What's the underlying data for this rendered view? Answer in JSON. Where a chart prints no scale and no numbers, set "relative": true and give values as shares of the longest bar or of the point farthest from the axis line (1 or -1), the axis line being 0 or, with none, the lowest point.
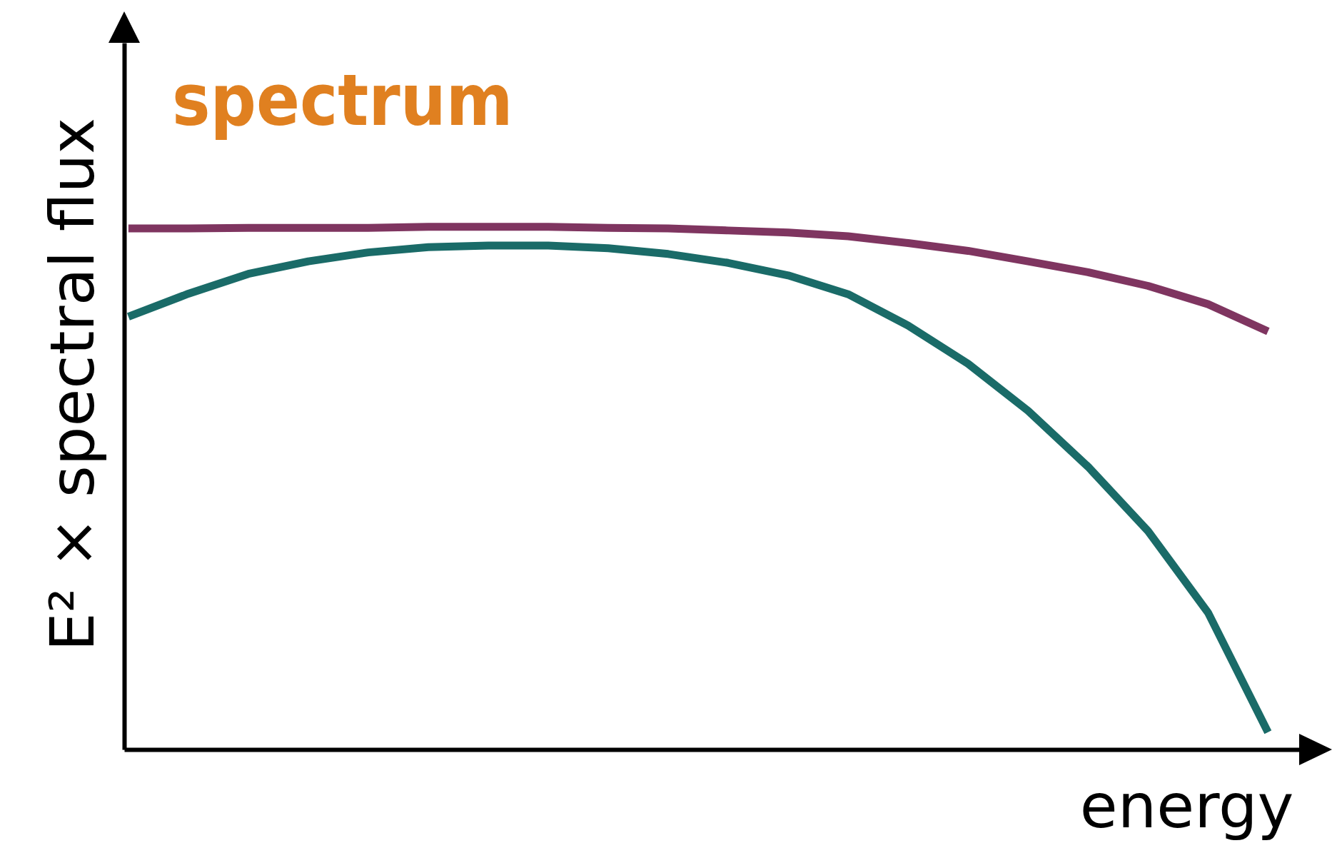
{
  "chart_data": {
    "type": "line",
    "title": "spectrum",
    "xlabel": "energy",
    "ylabel": "E² × spectral flux",
    "relative": true,
    "categories": [
      null,
      null,
      null,
      null,
      null,
      null,
      null,
      null,
      null,
      null,
      null,
      null,
      null,
      null,
      null,
      null,
      null,
      null,
      null,
      null
    ],
    "series": [
      {
        "color": "#7f3560",
        "values": [
          0.997,
          0.997,
          0.998,
          0.998,
          0.998,
          1.0,
          1.0,
          1.0,
          0.998,
          0.997,
          0.993,
          0.989,
          0.982,
          0.969,
          0.954,
          0.934,
          0.913,
          0.887,
          0.852,
          0.8
        ]
      },
      {
        "color": "#1a6b68",
        "values": [
          0.828,
          0.872,
          0.91,
          0.934,
          0.951,
          0.961,
          0.964,
          0.964,
          0.959,
          0.948,
          0.931,
          0.907,
          0.871,
          0.811,
          0.738,
          0.648,
          0.541,
          0.418,
          0.262,
          0.033
        ]
      }
    ]
  }
}
